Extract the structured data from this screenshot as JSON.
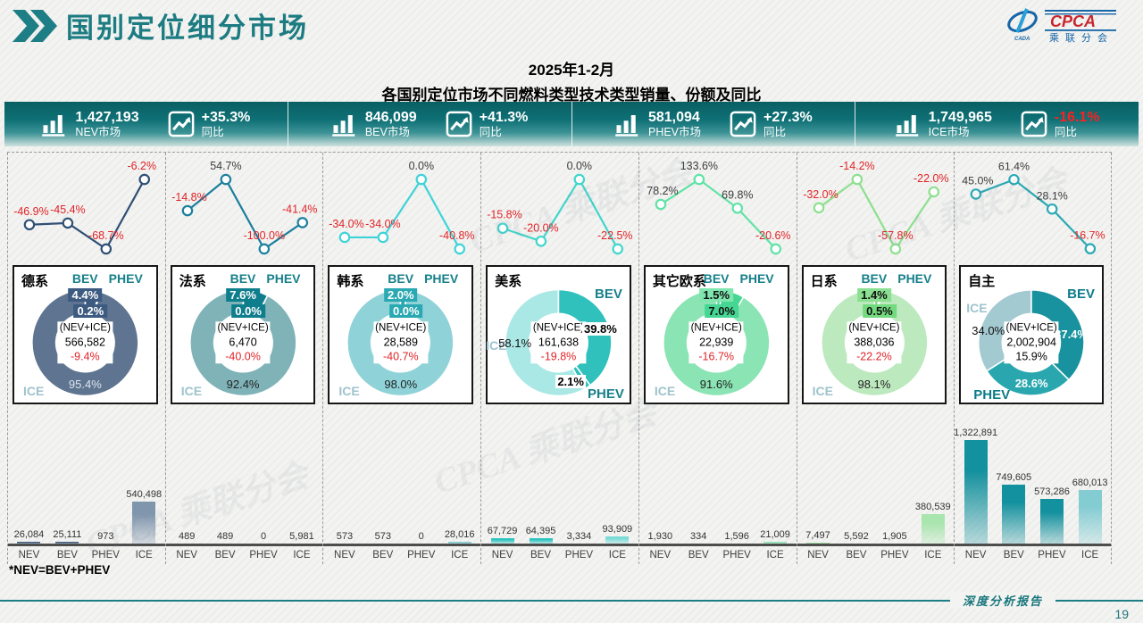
{
  "header": {
    "title": "国别定位细分市场",
    "logo": {
      "brand": "CPCA",
      "sub_cn": "乘联分会",
      "sub_en": "CADA"
    }
  },
  "subtitle": {
    "line1": "2025年1-2月",
    "line2": "各国别定位市场不同燃料类型技术类型销量、份额及同比"
  },
  "stats": [
    {
      "value": "1,427,193",
      "label": "NEV市场",
      "yoy": "+35.3%",
      "yoy_label": "同比",
      "negative": false
    },
    {
      "value": "846,099",
      "label": "BEV市场",
      "yoy": "+41.3%",
      "yoy_label": "同比",
      "negative": false
    },
    {
      "value": "581,094",
      "label": "PHEV市场",
      "yoy": "+27.3%",
      "yoy_label": "同比",
      "negative": false
    },
    {
      "value": "1,749,965",
      "label": "ICE市场",
      "yoy": "-16.1%",
      "yoy_label": "同比",
      "negative": true
    }
  ],
  "chart_data": {
    "type": "multi-panel",
    "categories": [
      "NEV",
      "BEV",
      "PHEV",
      "ICE"
    ],
    "bar_axis_max": 1322891,
    "negative_color": "#e02428",
    "positive_label_color": "#3c3c3c",
    "panels": [
      {
        "name": "德系",
        "layout": "compact",
        "line": {
          "color": "#2f4f74",
          "values": [
            -46.9,
            -45.4,
            -68.7,
            -6.2
          ],
          "labels": [
            "-46.9%",
            "-45.4%",
            "-68.7%",
            "-6.2%"
          ]
        },
        "donut": {
          "segments": [
            {
              "name": "BEV",
              "pct": 4.4,
              "color": "#3d5a80"
            },
            {
              "name": "PHEV",
              "pct": 0.2,
              "color": "#3d5a80"
            },
            {
              "name": "ICE",
              "pct": 95.4,
              "color": "#5e7490"
            }
          ],
          "legend": [
            "BEV",
            "PHEV"
          ],
          "badges": [
            "4.4%",
            "0.2%"
          ],
          "badge_bg": [
            "#3d5a80",
            "#3d5a80"
          ],
          "badge_text": "#ffffff",
          "ice_share": "95.4%",
          "ice_share_color": "#dfe5ec",
          "center": {
            "title": "(NEV+ICE)",
            "value": "566,582",
            "yoy": "-9.4%",
            "yoy_negative": true
          }
        },
        "bars": {
          "values": [
            26084,
            25111,
            973,
            540498
          ],
          "labels": [
            "26,084",
            "25,111",
            "973",
            "540,498"
          ],
          "color": "#2f4f74",
          "ice_color": "#8096ad"
        }
      },
      {
        "name": "法系",
        "layout": "compact",
        "line": {
          "color": "#1b7f9e",
          "values": [
            -14.8,
            54.7,
            -100.0,
            -41.4
          ],
          "labels": [
            "-14.8%",
            "54.7%",
            "-100.0%",
            "-41.4%"
          ]
        },
        "donut": {
          "segments": [
            {
              "name": "BEV",
              "pct": 7.6,
              "color": "#0f7e8c"
            },
            {
              "name": "PHEV",
              "pct": 0.0,
              "color": "#0f7e8c"
            },
            {
              "name": "ICE",
              "pct": 92.4,
              "color": "#7fb3b8"
            }
          ],
          "legend": [
            "BEV",
            "PHEV"
          ],
          "badges": [
            "7.6%",
            "0.0%"
          ],
          "badge_bg": [
            "#0f7e8c",
            "#0f7e8c"
          ],
          "badge_text": "#ffffff",
          "ice_share": "92.4%",
          "ice_share_color": "#222222",
          "center": {
            "title": "(NEV+ICE)",
            "value": "6,470",
            "yoy": "-40.0%",
            "yoy_negative": true
          }
        },
        "bars": {
          "values": [
            489,
            489,
            0,
            5981
          ],
          "labels": [
            "489",
            "489",
            "0",
            "5,981"
          ],
          "color": "#3fa9ad",
          "ice_color": "#5bbcbe"
        }
      },
      {
        "name": "韩系",
        "layout": "compact",
        "line": {
          "color": "#3ed3d8",
          "values": [
            -34.0,
            -34.0,
            0.0,
            -40.8
          ],
          "labels": [
            "-34.0%",
            "-34.0%",
            "0.0%",
            "-40.8%"
          ]
        },
        "donut": {
          "segments": [
            {
              "name": "BEV",
              "pct": 2.0,
              "color": "#2aa9b2"
            },
            {
              "name": "PHEV",
              "pct": 0.0,
              "color": "#2aa9b2"
            },
            {
              "name": "ICE",
              "pct": 98.0,
              "color": "#8fd2d8"
            }
          ],
          "legend": [
            "BEV",
            "PHEV"
          ],
          "badges": [
            "2.0%",
            "0.0%"
          ],
          "badge_bg": [
            "#2aa9b2",
            "#2aa9b2"
          ],
          "badge_text": "#ffffff",
          "ice_share": "98.0%",
          "ice_share_color": "#222222",
          "center": {
            "title": "(NEV+ICE)",
            "value": "28,589",
            "yoy": "-40.7%",
            "yoy_negative": true
          }
        },
        "bars": {
          "values": [
            573,
            573,
            0,
            28016
          ],
          "labels": [
            "573",
            "573",
            "0",
            "28,016"
          ],
          "color": "#4db9bd",
          "ice_color": "#6fc9cd"
        }
      },
      {
        "name": "美系",
        "layout": "spread",
        "line": {
          "color": "#41d6cc",
          "values": [
            -15.8,
            -20.0,
            0.0,
            -22.5
          ],
          "labels": [
            "-15.8%",
            "-20.0%",
            "0.0%",
            "-22.5%"
          ]
        },
        "donut": {
          "segments": [
            {
              "name": "BEV",
              "pct": 39.8,
              "color": "#30c1bd"
            },
            {
              "name": "PHEV",
              "pct": 2.1,
              "color": "#30c1bd"
            },
            {
              "name": "ICE",
              "pct": 58.1,
              "color": "#a9e8e5"
            }
          ],
          "legend": [],
          "bev_name": "BEV",
          "phev_name": "PHEV",
          "ice_name": "ICE",
          "bev_share": "39.8%",
          "phev_share": "2.1%",
          "ice_share": "58.1%",
          "ice_share_color": "#111111",
          "center": {
            "title": "(NEV+ICE)",
            "value": "161,638",
            "yoy": "-19.8%",
            "yoy_negative": true
          }
        },
        "bars": {
          "values": [
            67729,
            64395,
            3334,
            93909
          ],
          "labels": [
            "67,729",
            "64,395",
            "3,334",
            "93,909"
          ],
          "color": "#2ec4c0",
          "ice_color": "#7adcd8"
        }
      },
      {
        "name": "其它欧系",
        "layout": "compact",
        "line": {
          "color": "#5fe3a6",
          "values": [
            78.2,
            133.6,
            69.8,
            -20.6
          ],
          "labels": [
            "78.2%",
            "133.6%",
            "69.8%",
            "-20.6%"
          ]
        },
        "donut": {
          "segments": [
            {
              "name": "BEV",
              "pct": 1.5,
              "color": "#46d693"
            },
            {
              "name": "PHEV",
              "pct": 7.0,
              "color": "#46d693"
            },
            {
              "name": "ICE",
              "pct": 91.6,
              "color": "#8ae4b4"
            }
          ],
          "legend": [
            "BEV",
            "PHEV"
          ],
          "badges": [
            "1.5%",
            "7.0%"
          ],
          "badge_bg": [
            "#7ee6ae",
            "#46d693"
          ],
          "badge_text": "#111111",
          "ice_share": "91.6%",
          "ice_share_color": "#222222",
          "center": {
            "title": "(NEV+ICE)",
            "value": "22,939",
            "yoy": "-16.7%",
            "yoy_negative": true
          }
        },
        "bars": {
          "values": [
            1930,
            334,
            1596,
            21009
          ],
          "labels": [
            "1,930",
            "334",
            "1,596",
            "21,009"
          ],
          "color": "#57da9b",
          "ice_color": "#7fe3ae"
        }
      },
      {
        "name": "日系",
        "layout": "compact",
        "line": {
          "color": "#8ce08e",
          "values": [
            -32.0,
            -14.2,
            -57.8,
            -22.0
          ],
          "labels": [
            "-32.0%",
            "-14.2%",
            "-57.8%",
            "-22.0%"
          ]
        },
        "donut": {
          "segments": [
            {
              "name": "BEV",
              "pct": 1.4,
              "color": "#74da7f"
            },
            {
              "name": "PHEV",
              "pct": 0.5,
              "color": "#74da7f"
            },
            {
              "name": "ICE",
              "pct": 98.1,
              "color": "#bce9be"
            }
          ],
          "legend": [
            "BEV",
            "PHEV"
          ],
          "badges": [
            "1.4%",
            "0.5%"
          ],
          "badge_bg": [
            "#8adf90",
            "#74da7f"
          ],
          "badge_text": "#111111",
          "ice_share": "98.1%",
          "ice_share_color": "#222222",
          "center": {
            "title": "(NEV+ICE)",
            "value": "388,036",
            "yoy": "-22.2%",
            "yoy_negative": true
          }
        },
        "bars": {
          "values": [
            7497,
            5592,
            1905,
            380539
          ],
          "labels": [
            "7,497",
            "5,592",
            "1,905",
            "380,539"
          ],
          "color": "#8cd892",
          "ice_color": "#a9e5ae"
        }
      },
      {
        "name": "自主",
        "layout": "zizhu",
        "line": {
          "color": "#2aa9b4",
          "values": [
            45.0,
            61.4,
            28.1,
            -16.7
          ],
          "labels": [
            "45.0%",
            "61.4%",
            "28.1%",
            "-16.7%"
          ]
        },
        "donut": {
          "segments": [
            {
              "name": "BEV",
              "pct": 37.4,
              "color": "#17929e"
            },
            {
              "name": "PHEV",
              "pct": 28.6,
              "color": "#2aa7ae"
            },
            {
              "name": "ICE",
              "pct": 34.0,
              "color": "#a3c9d1"
            }
          ],
          "legend": [],
          "bev_name": "BEV",
          "phev_name": "PHEV",
          "ice_name": "ICE",
          "bev_share": "37.4%",
          "phev_share": "28.6%",
          "ice_share": "34.0%",
          "ice_share_color": "#111111",
          "center": {
            "title": "(NEV+ICE)",
            "value": "2,002,904",
            "yoy": "15.9%",
            "yoy_negative": false
          }
        },
        "bars": {
          "values": [
            1322891,
            749605,
            573286,
            680013
          ],
          "labels": [
            "1,322,891",
            "749,605",
            "573,286",
            "680,013"
          ],
          "color": "#14919e",
          "ice_color": "#82ccd2"
        }
      }
    ]
  },
  "note": "*NEV=BEV+PHEV",
  "footer": {
    "report_label": "深度分析报告",
    "page": "19"
  }
}
